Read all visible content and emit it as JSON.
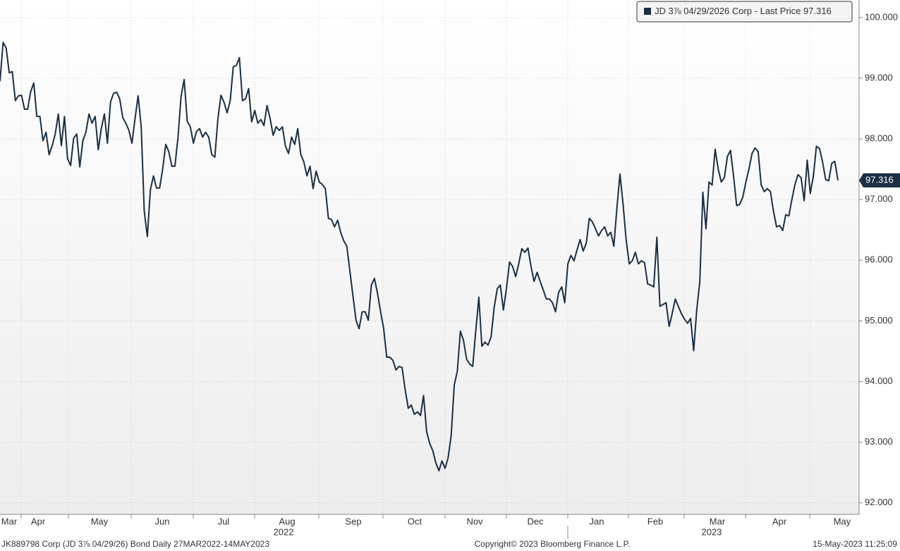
{
  "chart_data": {
    "type": "line",
    "series": [
      {
        "name": "JD 3⅞ 04/29/2026 Corp - Last Price",
        "color": "#1b2f45",
        "values": [
          98.95,
          99.59,
          99.5,
          99.09,
          99.11,
          98.63,
          98.71,
          98.72,
          98.49,
          98.49,
          98.78,
          98.92,
          98.37,
          98.37,
          97.97,
          98.11,
          97.74,
          97.89,
          98.08,
          98.41,
          97.89,
          98.37,
          97.68,
          97.56,
          98.01,
          98.08,
          97.54,
          97.97,
          98.11,
          98.41,
          98.26,
          98.37,
          97.82,
          98.17,
          98.41,
          97.93,
          98.61,
          98.75,
          98.77,
          98.66,
          98.35,
          98.26,
          98.14,
          97.93,
          98.34,
          98.71,
          98.2,
          96.81,
          96.39,
          97.16,
          97.39,
          97.19,
          97.19,
          97.5,
          97.91,
          97.79,
          97.55,
          97.55,
          98.03,
          98.7,
          98.98,
          98.29,
          98.2,
          97.93,
          98.12,
          98.17,
          98.03,
          98.11,
          98.03,
          97.74,
          97.7,
          98.34,
          98.72,
          98.6,
          98.43,
          98.63,
          99.19,
          99.21,
          99.34,
          98.63,
          98.66,
          98.83,
          98.28,
          98.47,
          98.26,
          98.32,
          98.22,
          98.55,
          98.34,
          98.06,
          98.2,
          98.14,
          98.2,
          97.88,
          97.76,
          98.03,
          97.91,
          98.17,
          97.74,
          97.62,
          97.39,
          97.55,
          97.18,
          97.47,
          97.29,
          97.25,
          97.18,
          96.69,
          96.67,
          96.55,
          96.66,
          96.46,
          96.32,
          96.23,
          95.82,
          95.41,
          95.01,
          94.87,
          95.15,
          95.15,
          95.01,
          95.59,
          95.7,
          95.45,
          95.15,
          94.87,
          94.4,
          94.4,
          94.35,
          94.19,
          94.25,
          94.23,
          93.87,
          93.56,
          93.61,
          93.46,
          93.5,
          93.44,
          93.77,
          93.17,
          92.98,
          92.86,
          92.66,
          92.53,
          92.69,
          92.57,
          92.74,
          93.11,
          93.94,
          94.17,
          94.83,
          94.68,
          94.37,
          94.29,
          94.25,
          94.83,
          95.39,
          94.58,
          94.65,
          94.6,
          94.74,
          95.22,
          95.53,
          95.59,
          95.18,
          95.53,
          95.97,
          95.9,
          95.73,
          95.94,
          96.19,
          96.13,
          96.2,
          95.9,
          95.65,
          95.8,
          95.65,
          95.51,
          95.36,
          95.36,
          95.3,
          95.15,
          95.47,
          95.56,
          95.3,
          95.94,
          96.08,
          95.99,
          96.17,
          96.34,
          96.15,
          96.28,
          96.69,
          96.63,
          96.52,
          96.4,
          96.49,
          96.55,
          96.4,
          96.46,
          96.23,
          96.87,
          97.42,
          96.92,
          96.34,
          95.94,
          95.99,
          96.13,
          95.94,
          95.99,
          95.96,
          95.61,
          95.59,
          95.56,
          96.38,
          95.24,
          95.27,
          95.3,
          94.91,
          95.12,
          95.36,
          95.24,
          95.12,
          95.03,
          94.96,
          95.04,
          94.51,
          95.18,
          95.65,
          97.12,
          96.52,
          97.29,
          97.24,
          97.83,
          97.5,
          97.29,
          97.36,
          97.71,
          97.81,
          97.39,
          96.9,
          96.92,
          97.04,
          97.29,
          97.5,
          97.76,
          97.85,
          97.79,
          97.24,
          97.13,
          97.18,
          97.13,
          96.81,
          96.55,
          96.57,
          96.49,
          96.75,
          96.73,
          97.0,
          97.25,
          97.41,
          97.36,
          96.98,
          97.65,
          97.1,
          97.39,
          97.88,
          97.84,
          97.62,
          97.33,
          97.31,
          97.6,
          97.63,
          97.316
        ]
      }
    ],
    "ylim": [
      91.81,
      100.29
    ],
    "yticks": [
      {
        "value": 92,
        "label": "92.000"
      },
      {
        "value": 93,
        "label": "93.000"
      },
      {
        "value": 94,
        "label": "94.000"
      },
      {
        "value": 95,
        "label": "95.000"
      },
      {
        "value": 96,
        "label": "96.000"
      },
      {
        "value": 97,
        "label": "97.000"
      },
      {
        "value": 98,
        "label": "98.000"
      },
      {
        "value": 99,
        "label": "99.000"
      },
      {
        "value": 100,
        "label": "100.000"
      }
    ],
    "month_labels": [
      "Mar",
      "Apr",
      "May",
      "Jun",
      "Jul",
      "Aug",
      "Sep",
      "Oct",
      "Nov",
      "Dec",
      "Jan",
      "Feb",
      "Mar",
      "Apr",
      "May"
    ],
    "year_labels": [
      "2022",
      "2023"
    ],
    "grid": true,
    "legend": "top-right"
  },
  "footer": {
    "left": "JK889798 Corp (JD 3⅞ 04/29/26) Bond  Daily 27MAR2022-14MAY2023",
    "center": "Copyright© 2023 Bloomberg Finance L.P.",
    "right": "15-May-2023 11:25:09"
  }
}
